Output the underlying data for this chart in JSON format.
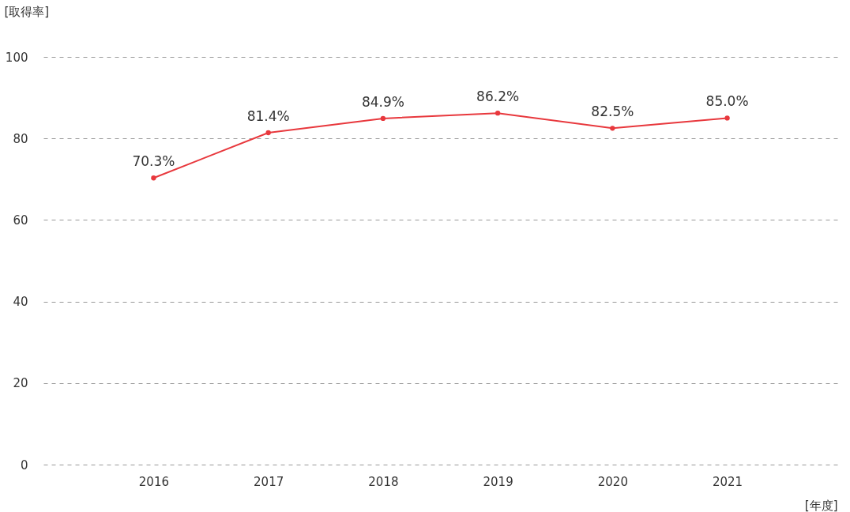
{
  "chart_data": {
    "type": "line",
    "ylabel": "[取得率]",
    "xlabel": "[年度]",
    "categories": [
      "2016",
      "2017",
      "2018",
      "2019",
      "2020",
      "2021"
    ],
    "series": [
      {
        "color": "#e8383d",
        "values": [
          70.3,
          81.4,
          84.9,
          86.2,
          82.5,
          85.0
        ],
        "value_labels": [
          "70.3%",
          "81.4%",
          "84.9%",
          "86.2%",
          "82.5%",
          "85.0%"
        ]
      }
    ],
    "ylim": [
      0,
      100
    ],
    "yticks": [
      0,
      20,
      40,
      60,
      80,
      100
    ],
    "grid": "y",
    "marker": "circle",
    "line_style": "solid"
  }
}
